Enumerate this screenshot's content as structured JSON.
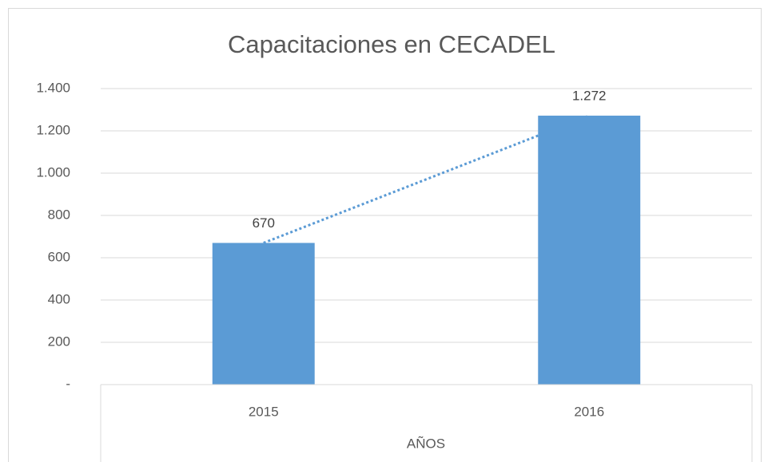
{
  "chart_data": {
    "type": "bar",
    "title": "Capacitaciones en CECADEL",
    "categories": [
      "2015",
      "2016"
    ],
    "values": [
      670,
      1272
    ],
    "value_labels": [
      "670",
      "1.272"
    ],
    "color": "#5b9bd5",
    "trendline": true,
    "xlabel": "AÑOS",
    "ylim": [
      0,
      1400
    ],
    "yticks": [
      {
        "value": 0,
        "label": "-"
      },
      200,
      400,
      600,
      800,
      {
        "value": 1000,
        "label": "1.000"
      },
      {
        "value": 1200,
        "label": "1.200"
      },
      {
        "value": 1400,
        "label": "1.400"
      }
    ],
    "grid": true
  }
}
